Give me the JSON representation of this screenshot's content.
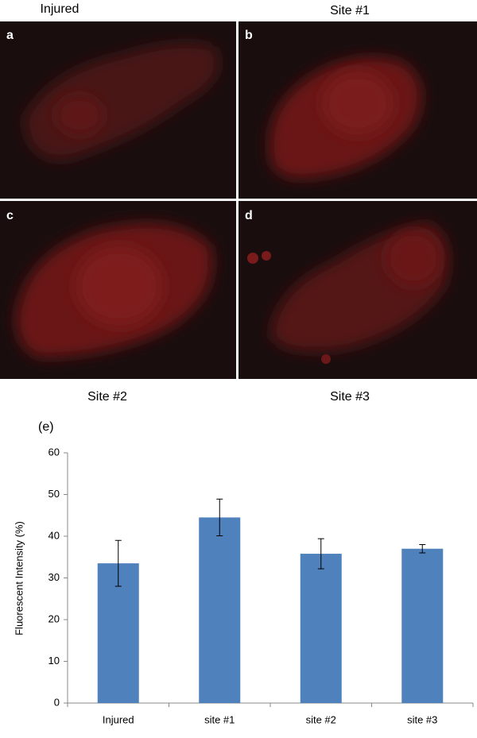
{
  "panels": [
    {
      "letter": "a",
      "caption": "Injured"
    },
    {
      "letter": "b",
      "caption": "Site #1"
    },
    {
      "letter": "c",
      "caption": "Site #2"
    },
    {
      "letter": "d",
      "caption": "Site #3"
    }
  ],
  "chart_data": {
    "type": "bar",
    "title": "(e)",
    "y_label": "Fluorescent Intensity (%)",
    "categories": [
      "Injured",
      "site #1",
      "site #2",
      "site #3"
    ],
    "values": [
      33.5,
      44.5,
      35.8,
      37
    ],
    "errors": [
      5.5,
      4.4,
      3.6,
      1
    ],
    "color": "#4f81bd",
    "ylim": [
      0,
      60
    ],
    "yticks": [
      0,
      10,
      20,
      30,
      40,
      50,
      60
    ],
    "grid": false
  }
}
